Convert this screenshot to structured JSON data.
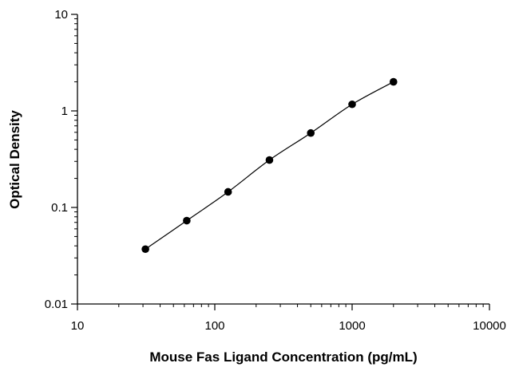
{
  "chart_data": {
    "type": "scatter",
    "title": "",
    "xlabel": "Mouse Fas Ligand Concentration (pg/mL)",
    "ylabel": "Optical Density",
    "xscale": "log",
    "yscale": "log",
    "xlim": [
      10,
      10000
    ],
    "ylim": [
      0.01,
      10
    ],
    "xticks": [
      10,
      100,
      1000,
      10000
    ],
    "xtick_labels": [
      "10",
      "100",
      "1000",
      "10000"
    ],
    "yticks": [
      0.01,
      0.1,
      1,
      10
    ],
    "ytick_labels": [
      "0.01",
      "0.1",
      "1",
      "10"
    ],
    "grid": false,
    "legend": "none",
    "fit_curve": true,
    "series": [
      {
        "x": [
          31.25,
          62.5,
          125,
          250,
          500,
          1000,
          2000
        ],
        "y": [
          0.037,
          0.073,
          0.145,
          0.31,
          0.59,
          1.17,
          2.0
        ]
      }
    ],
    "colors": {
      "marker": "#000000",
      "line": "#000000",
      "axis": "#000000"
    }
  }
}
